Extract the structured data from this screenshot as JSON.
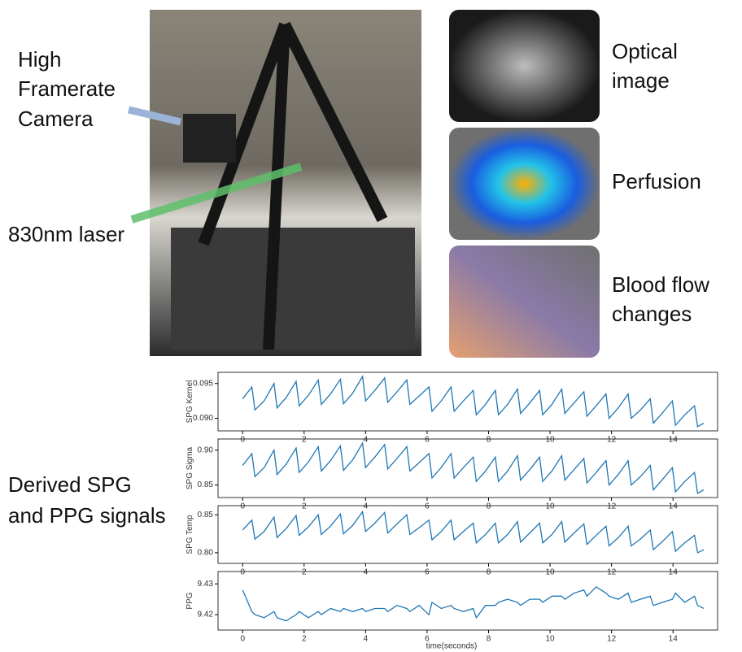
{
  "labels": {
    "camera": [
      "High",
      "Framerate",
      "Camera"
    ],
    "laser": "830nm laser",
    "optical": [
      "Optical",
      "image"
    ],
    "perfusion": "Perfusion",
    "blood_flow": [
      "Blood flow",
      "changes"
    ],
    "derived": [
      "Derived SPG",
      "and PPG signals"
    ]
  },
  "chart_data": [
    {
      "type": "line",
      "y_label": "SPG Kernel",
      "x": [
        0,
        0.3,
        0.4,
        0.7,
        1.02,
        1.12,
        1.42,
        1.74,
        1.84,
        2.14,
        2.46,
        2.56,
        2.86,
        3.18,
        3.28,
        3.58,
        3.9,
        4.0,
        4.3,
        4.62,
        4.72,
        5.02,
        5.34,
        5.44,
        5.74,
        6.06,
        6.16,
        6.46,
        6.78,
        6.88,
        7.18,
        7.5,
        7.6,
        7.9,
        8.22,
        8.32,
        8.62,
        8.94,
        9.04,
        9.34,
        9.66,
        9.76,
        10.06,
        10.38,
        10.48,
        10.78,
        11.1,
        11.2,
        11.5,
        11.82,
        11.92,
        12.22,
        12.54,
        12.64,
        12.94,
        13.26,
        13.36,
        13.66,
        13.98,
        14.08,
        14.38,
        14.7,
        14.8,
        15.0
      ],
      "series": [
        {
          "color": "#1f77b4",
          "values": [
            0.0928,
            0.0945,
            0.0912,
            0.0925,
            0.095,
            0.0915,
            0.093,
            0.0953,
            0.0918,
            0.0933,
            0.0955,
            0.092,
            0.0935,
            0.0956,
            0.0921,
            0.0936,
            0.096,
            0.0925,
            0.094,
            0.0958,
            0.0923,
            0.0938,
            0.0955,
            0.092,
            0.0932,
            0.0945,
            0.091,
            0.0925,
            0.0945,
            0.091,
            0.0925,
            0.094,
            0.0905,
            0.092,
            0.094,
            0.0905,
            0.092,
            0.0942,
            0.0907,
            0.0922,
            0.094,
            0.0905,
            0.092,
            0.0942,
            0.0907,
            0.0922,
            0.0938,
            0.0903,
            0.0918,
            0.0935,
            0.09,
            0.0915,
            0.0935,
            0.09,
            0.0912,
            0.0928,
            0.0893,
            0.0908,
            0.0925,
            0.089,
            0.0905,
            0.0918,
            0.0888,
            0.0893
          ]
        }
      ],
      "xlim": [
        -0.8,
        15.45
      ],
      "xticks": [
        0,
        2,
        4,
        6,
        8,
        10,
        12,
        14
      ],
      "ylim": [
        0.0882,
        0.0966
      ],
      "yticks": [
        {
          "value": 0.09,
          "label": "0.090"
        },
        0.095
      ]
    },
    {
      "type": "line",
      "y_label": "SPG Sigma",
      "x": [
        0,
        0.3,
        0.4,
        0.7,
        1.02,
        1.12,
        1.42,
        1.74,
        1.84,
        2.14,
        2.46,
        2.56,
        2.86,
        3.18,
        3.28,
        3.58,
        3.9,
        4.0,
        4.3,
        4.62,
        4.72,
        5.02,
        5.34,
        5.44,
        5.74,
        6.06,
        6.16,
        6.46,
        6.78,
        6.88,
        7.18,
        7.5,
        7.6,
        7.9,
        8.22,
        8.32,
        8.62,
        8.94,
        9.04,
        9.34,
        9.66,
        9.76,
        10.06,
        10.38,
        10.48,
        10.78,
        11.1,
        11.2,
        11.5,
        11.82,
        11.92,
        12.22,
        12.54,
        12.64,
        12.94,
        13.26,
        13.36,
        13.66,
        13.98,
        14.08,
        14.38,
        14.7,
        14.8,
        15.0
      ],
      "series": [
        {
          "color": "#1f77b4",
          "values": [
            0.878,
            0.895,
            0.862,
            0.875,
            0.9,
            0.865,
            0.88,
            0.903,
            0.868,
            0.883,
            0.905,
            0.87,
            0.885,
            0.906,
            0.871,
            0.886,
            0.91,
            0.875,
            0.89,
            0.908,
            0.873,
            0.888,
            0.905,
            0.87,
            0.882,
            0.895,
            0.86,
            0.875,
            0.895,
            0.86,
            0.875,
            0.89,
            0.855,
            0.87,
            0.89,
            0.855,
            0.87,
            0.892,
            0.857,
            0.872,
            0.89,
            0.855,
            0.87,
            0.892,
            0.857,
            0.872,
            0.888,
            0.853,
            0.868,
            0.885,
            0.85,
            0.865,
            0.885,
            0.85,
            0.862,
            0.878,
            0.843,
            0.858,
            0.875,
            0.84,
            0.855,
            0.868,
            0.838,
            0.843
          ]
        }
      ],
      "xlim": [
        -0.8,
        15.45
      ],
      "xticks": [
        0,
        2,
        4,
        6,
        8,
        10,
        12,
        14
      ],
      "ylim": [
        0.832,
        0.916
      ],
      "yticks": [
        0.85,
        {
          "value": 0.9,
          "label": "0.90"
        }
      ]
    },
    {
      "type": "line",
      "y_label": "SPG Temp",
      "x": [
        0,
        0.3,
        0.4,
        0.7,
        1.02,
        1.12,
        1.42,
        1.74,
        1.84,
        2.14,
        2.46,
        2.56,
        2.86,
        3.18,
        3.28,
        3.58,
        3.9,
        4.0,
        4.3,
        4.62,
        4.72,
        5.02,
        5.34,
        5.44,
        5.74,
        6.06,
        6.16,
        6.46,
        6.78,
        6.88,
        7.18,
        7.5,
        7.6,
        7.9,
        8.22,
        8.32,
        8.62,
        8.94,
        9.04,
        9.34,
        9.66,
        9.76,
        10.06,
        10.38,
        10.48,
        10.78,
        11.1,
        11.2,
        11.5,
        11.82,
        11.92,
        12.22,
        12.54,
        12.64,
        12.94,
        13.26,
        13.36,
        13.66,
        13.98,
        14.08,
        14.38,
        14.7,
        14.8,
        15.0
      ],
      "series": [
        {
          "color": "#1f77b4",
          "values": [
            0.83,
            0.843,
            0.818,
            0.828,
            0.847,
            0.82,
            0.832,
            0.849,
            0.823,
            0.834,
            0.85,
            0.824,
            0.835,
            0.851,
            0.825,
            0.836,
            0.854,
            0.828,
            0.839,
            0.853,
            0.826,
            0.838,
            0.85,
            0.824,
            0.833,
            0.843,
            0.817,
            0.828,
            0.843,
            0.817,
            0.828,
            0.839,
            0.813,
            0.824,
            0.839,
            0.813,
            0.824,
            0.841,
            0.814,
            0.826,
            0.839,
            0.813,
            0.824,
            0.841,
            0.814,
            0.826,
            0.838,
            0.811,
            0.823,
            0.835,
            0.809,
            0.82,
            0.835,
            0.809,
            0.818,
            0.83,
            0.804,
            0.815,
            0.828,
            0.802,
            0.813,
            0.823,
            0.8,
            0.804
          ]
        }
      ],
      "xlim": [
        -0.8,
        15.45
      ],
      "xticks": [
        0,
        2,
        4,
        6,
        8,
        10,
        12,
        14
      ],
      "ylim": [
        0.786,
        0.862
      ],
      "yticks": [
        {
          "value": 0.8,
          "label": "0.80"
        },
        0.85
      ]
    },
    {
      "type": "line",
      "y_label": "PPG",
      "x_label": "time(seconds)",
      "x": [
        0,
        0.3,
        0.4,
        0.7,
        1.02,
        1.12,
        1.42,
        1.74,
        1.84,
        2.14,
        2.46,
        2.56,
        2.86,
        3.18,
        3.28,
        3.58,
        3.9,
        4.0,
        4.3,
        4.62,
        4.72,
        5.02,
        5.34,
        5.44,
        5.74,
        6.06,
        6.16,
        6.46,
        6.78,
        6.88,
        7.18,
        7.5,
        7.6,
        7.9,
        8.22,
        8.32,
        8.62,
        8.94,
        9.04,
        9.34,
        9.66,
        9.76,
        10.06,
        10.38,
        10.48,
        10.78,
        11.1,
        11.2,
        11.5,
        11.82,
        11.92,
        12.22,
        12.54,
        12.64,
        12.94,
        13.26,
        13.36,
        13.66,
        13.98,
        14.08,
        14.38,
        14.7,
        14.8,
        15.0
      ],
      "series": [
        {
          "color": "#1f77b4",
          "values": [
            9.428,
            9.421,
            9.42,
            9.419,
            9.421,
            9.419,
            9.418,
            9.42,
            9.421,
            9.419,
            9.421,
            9.42,
            9.422,
            9.421,
            9.422,
            9.421,
            9.422,
            9.421,
            9.422,
            9.422,
            9.421,
            9.423,
            9.422,
            9.421,
            9.423,
            9.42,
            9.424,
            9.422,
            9.423,
            9.422,
            9.421,
            9.422,
            9.419,
            9.423,
            9.423,
            9.424,
            9.425,
            9.424,
            9.423,
            9.425,
            9.425,
            9.424,
            9.426,
            9.426,
            9.425,
            9.427,
            9.428,
            9.426,
            9.429,
            9.427,
            9.426,
            9.425,
            9.427,
            9.424,
            9.425,
            9.426,
            9.423,
            9.424,
            9.425,
            9.427,
            9.424,
            9.426,
            9.423,
            9.422
          ]
        }
      ],
      "xlim": [
        -0.8,
        15.45
      ],
      "xticks": [
        0,
        2,
        4,
        6,
        8,
        10,
        12,
        14
      ],
      "ylim": [
        9.415,
        9.434
      ],
      "yticks": [
        9.42,
        9.43
      ]
    }
  ]
}
